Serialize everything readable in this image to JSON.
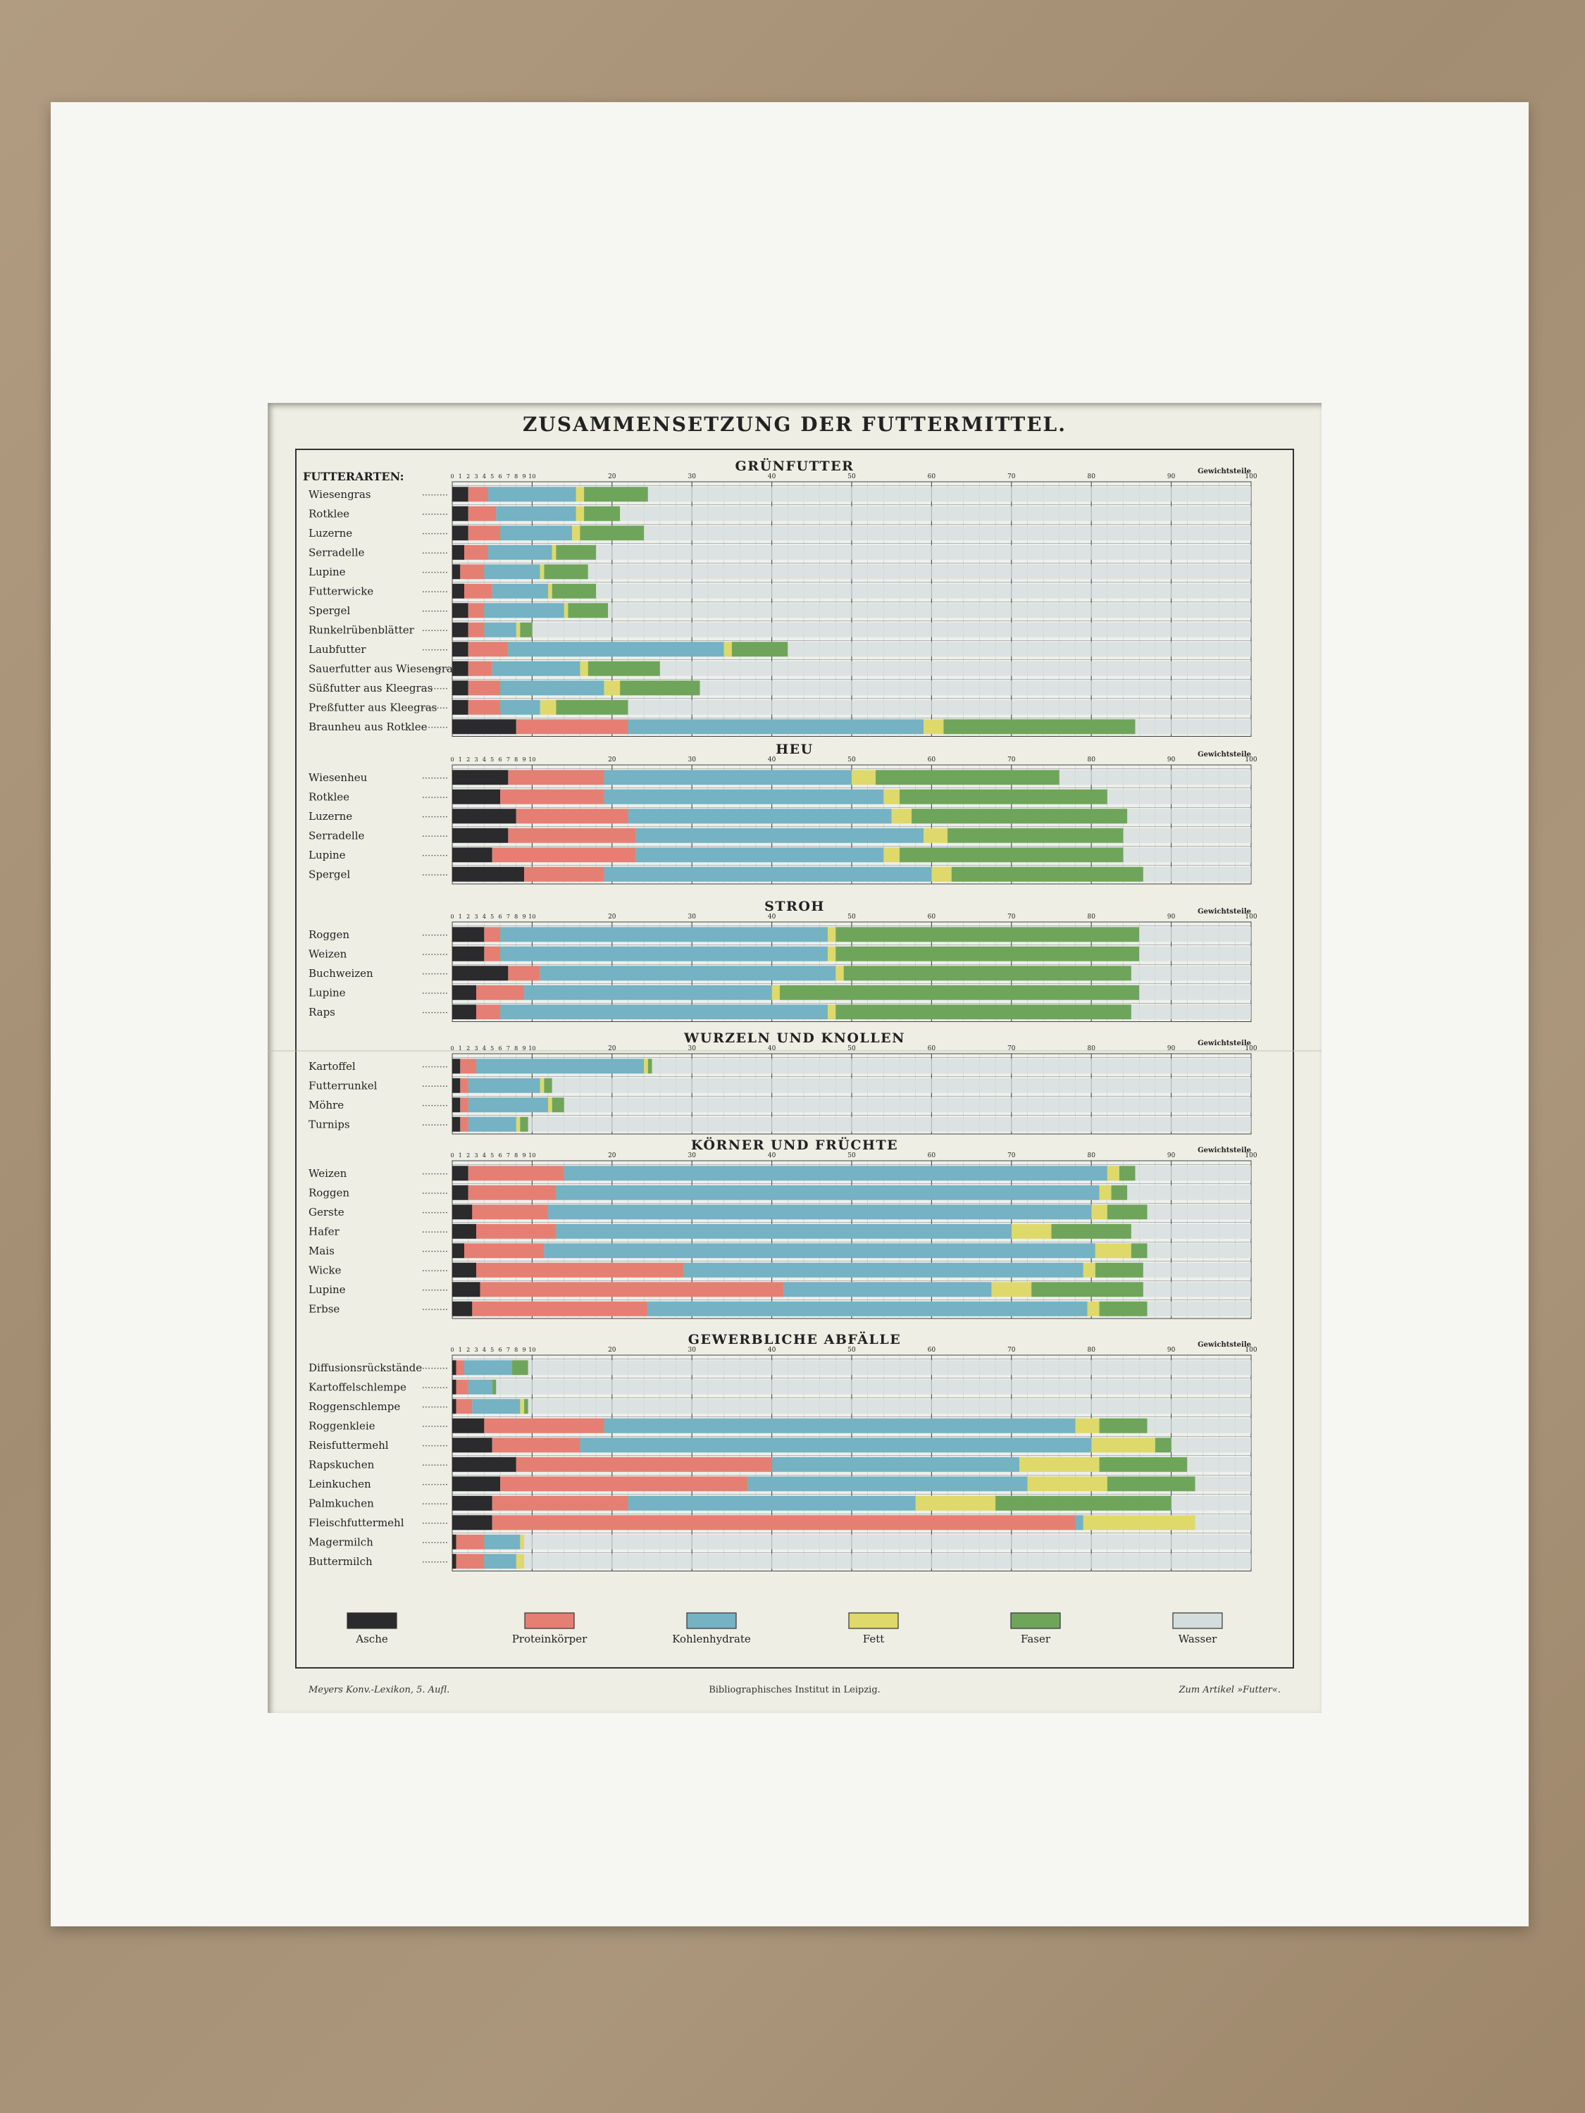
{
  "colors": {
    "Asche": "#2b2a2c",
    "Proteinkörper": "#e57f73",
    "Kohlenhydrate": "#74b2c4",
    "Fett": "#ded96a",
    "Faser": "#6fa55a",
    "Wasser": "#d4dddd"
  },
  "footer": {
    "left": "Meyers Konv.-Lexikon, 5. Aufl.",
    "center": "Bibliographisches Institut in Leipzig.",
    "right": "Zum Artikel »Futter«."
  },
  "chart_data": {
    "type": "bar",
    "stacked": true,
    "orientation": "horizontal",
    "title": "ZUSAMMENSETZUNG DER FUTTERMITTEL.",
    "row_header": "FUTTERARTEN:",
    "unit_label": "Gewichtsteile",
    "xlim": [
      0,
      100
    ],
    "grid": true,
    "legend": [
      "Asche",
      "Proteinkörper",
      "Kohlenhydrate",
      "Fett",
      "Faser",
      "Wasser"
    ],
    "legend_position": "bottom",
    "components": [
      "Asche",
      "Proteinkörper",
      "Kohlenhydrate",
      "Fett",
      "Faser",
      "Wasser"
    ],
    "groups": [
      {
        "name": "GRÜNFUTTER",
        "rows": [
          {
            "label": "Wiesengras",
            "values": [
              2,
              2.5,
              11,
              1,
              8,
              75.5
            ]
          },
          {
            "label": "Rotklee",
            "values": [
              2,
              3.5,
              10,
              1,
              4.5,
              79
            ]
          },
          {
            "label": "Luzerne",
            "values": [
              2,
              4,
              9,
              1,
              8,
              76
            ]
          },
          {
            "label": "Serradelle",
            "values": [
              1.5,
              3,
              8,
              0.5,
              5,
              82
            ]
          },
          {
            "label": "Lupine",
            "values": [
              1,
              3,
              7,
              0.5,
              5.5,
              83
            ]
          },
          {
            "label": "Futterwicke",
            "values": [
              1.5,
              3.5,
              7,
              0.5,
              5.5,
              82
            ]
          },
          {
            "label": "Spergel",
            "values": [
              2,
              2,
              10,
              0.5,
              5,
              80.5
            ]
          },
          {
            "label": "Runkelrübenblätter",
            "values": [
              2,
              2,
              4,
              0.5,
              1.5,
              90
            ]
          },
          {
            "label": "Laubfutter",
            "values": [
              2,
              5,
              27,
              1,
              7,
              58
            ]
          },
          {
            "label": "Sauerfutter aus Wiesengras",
            "values": [
              2,
              3,
              11,
              1,
              9,
              74
            ]
          },
          {
            "label": "Süßfutter aus Kleegras",
            "values": [
              2,
              4,
              13,
              2,
              10,
              69
            ]
          },
          {
            "label": "Preßfutter aus Kleegras",
            "values": [
              2,
              4,
              5,
              2,
              9,
              78
            ]
          },
          {
            "label": "Braunheu aus Rotklee",
            "values": [
              8,
              14,
              37,
              2.5,
              24,
              14.5
            ]
          }
        ]
      },
      {
        "name": "HEU",
        "rows": [
          {
            "label": "Wiesenheu",
            "values": [
              7,
              12,
              31,
              3,
              23,
              24
            ]
          },
          {
            "label": "Rotklee",
            "values": [
              6,
              13,
              35,
              2,
              26,
              18
            ]
          },
          {
            "label": "Luzerne",
            "values": [
              8,
              14,
              33,
              2.5,
              27,
              15.5
            ]
          },
          {
            "label": "Serradelle",
            "values": [
              7,
              16,
              36,
              3,
              22,
              16
            ]
          },
          {
            "label": "Lupine",
            "values": [
              5,
              18,
              31,
              2,
              28,
              16
            ]
          },
          {
            "label": "Spergel",
            "values": [
              9,
              10,
              41,
              2.5,
              24,
              13.5
            ]
          }
        ]
      },
      {
        "name": "STROH",
        "rows": [
          {
            "label": "Roggen",
            "values": [
              4,
              2,
              41,
              1,
              38,
              14
            ]
          },
          {
            "label": "Weizen",
            "values": [
              4,
              2,
              41,
              1,
              38,
              14
            ]
          },
          {
            "label": "Buchweizen",
            "values": [
              7,
              4,
              37,
              1,
              36,
              15
            ]
          },
          {
            "label": "Lupine",
            "values": [
              3,
              6,
              31,
              1,
              45,
              14
            ]
          },
          {
            "label": "Raps",
            "values": [
              3,
              3,
              41,
              1,
              37,
              15
            ]
          }
        ]
      },
      {
        "name": "WURZELN UND KNOLLEN",
        "rows": [
          {
            "label": "Kartoffel",
            "values": [
              1,
              2,
              21,
              0.5,
              0.5,
              75
            ]
          },
          {
            "label": "Futterrunkel",
            "values": [
              1,
              1,
              9,
              0.5,
              1,
              87.5
            ]
          },
          {
            "label": "Möhre",
            "values": [
              1,
              1,
              10,
              0.5,
              1.5,
              86
            ]
          },
          {
            "label": "Turnips",
            "values": [
              1,
              1,
              6,
              0.5,
              1,
              90.5
            ]
          }
        ]
      },
      {
        "name": "KÖRNER UND FRÜCHTE",
        "rows": [
          {
            "label": "Weizen",
            "values": [
              2,
              12,
              68,
              1.5,
              2,
              14.5
            ]
          },
          {
            "label": "Roggen",
            "values": [
              2,
              11,
              68,
              1.5,
              2,
              15.5
            ]
          },
          {
            "label": "Gerste",
            "values": [
              2.5,
              9.5,
              68,
              2,
              5,
              13
            ]
          },
          {
            "label": "Hafer",
            "values": [
              3,
              10,
              57,
              5,
              10,
              15
            ]
          },
          {
            "label": "Mais",
            "values": [
              1.5,
              10,
              69,
              4.5,
              2,
              13
            ]
          },
          {
            "label": "Wicke",
            "values": [
              3,
              26,
              50,
              1.5,
              6,
              13.5
            ]
          },
          {
            "label": "Lupine",
            "values": [
              3.5,
              38,
              26,
              5,
              14,
              13.5
            ]
          },
          {
            "label": "Erbse",
            "values": [
              2.5,
              22,
              55,
              1.5,
              6,
              13
            ]
          }
        ]
      },
      {
        "name": "GEWERBLICHE ABFÄLLE",
        "rows": [
          {
            "label": "Diffusionsrückstände",
            "values": [
              0.5,
              1,
              6,
              0,
              2,
              90.5
            ]
          },
          {
            "label": "Kartoffelschlempe",
            "values": [
              0.5,
              1.5,
              3,
              0,
              0.5,
              94.5
            ]
          },
          {
            "label": "Roggenschlempe",
            "values": [
              0.5,
              2,
              6,
              0.5,
              0.5,
              90.5
            ]
          },
          {
            "label": "Roggenkleie",
            "values": [
              4,
              15,
              59,
              3,
              6,
              13
            ]
          },
          {
            "label": "Reisfuttermehl",
            "values": [
              5,
              11,
              64,
              8,
              2,
              10
            ]
          },
          {
            "label": "Rapskuchen",
            "values": [
              8,
              32,
              31,
              10,
              11,
              8
            ]
          },
          {
            "label": "Leinkuchen",
            "values": [
              6,
              31,
              35,
              10,
              11,
              7
            ]
          },
          {
            "label": "Palmkuchen",
            "values": [
              5,
              17,
              36,
              10,
              22,
              10
            ]
          },
          {
            "label": "Fleischfuttermehl",
            "values": [
              5,
              73,
              1,
              14,
              0,
              7
            ]
          },
          {
            "label": "Magermilch",
            "values": [
              0.5,
              3.5,
              4.5,
              0.5,
              0,
              91
            ]
          },
          {
            "label": "Buttermilch",
            "values": [
              0.5,
              3.5,
              4,
              1,
              0,
              91
            ]
          }
        ]
      }
    ]
  }
}
